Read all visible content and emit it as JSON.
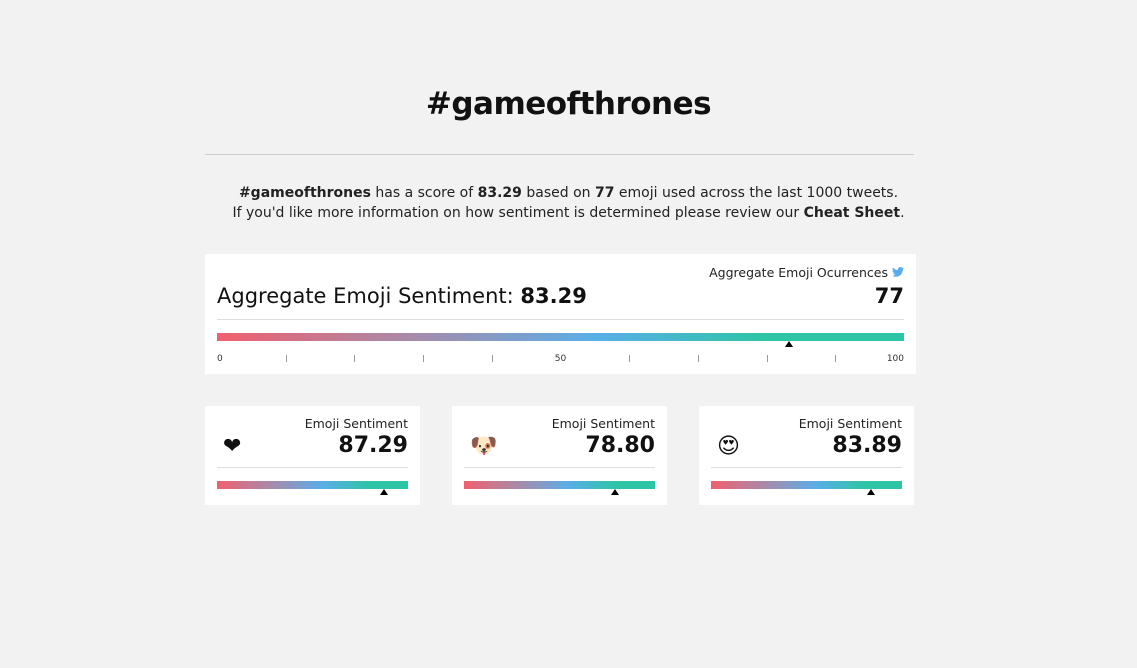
{
  "header": {
    "title": "#gameofthrones"
  },
  "intro": {
    "has_score": "has a score of",
    "based_on": "based on",
    "emoji_used": "emoji used across the last",
    "tweets_count": 1000,
    "tweets": "tweets.",
    "more_info": "If you'd like more information on how sentiment is determined please review our",
    "link": "Cheat Sheet",
    "period": "."
  },
  "scale": {
    "range": [
      0,
      100
    ],
    "tick_labels": [
      0,
      50,
      100
    ],
    "minor_ticks": [
      10,
      20,
      30,
      40,
      60,
      70,
      80,
      90
    ]
  },
  "aggregate": {
    "label": "Aggregate Emoji Sentiment:",
    "score": 83.29,
    "occurrences_label": "Aggregate Emoji Ocurrences",
    "occurrences": 77
  },
  "cards": [
    {
      "emoji": "❤",
      "label": "Emoji Sentiment",
      "score": 87.29
    },
    {
      "emoji": "🐶",
      "label": "Emoji Sentiment",
      "score": {
        "value": 78.8,
        "label": "78.80"
      }
    },
    {
      "emoji": "😍",
      "label": "Emoji Sentiment",
      "score": 83.89
    }
  ]
}
